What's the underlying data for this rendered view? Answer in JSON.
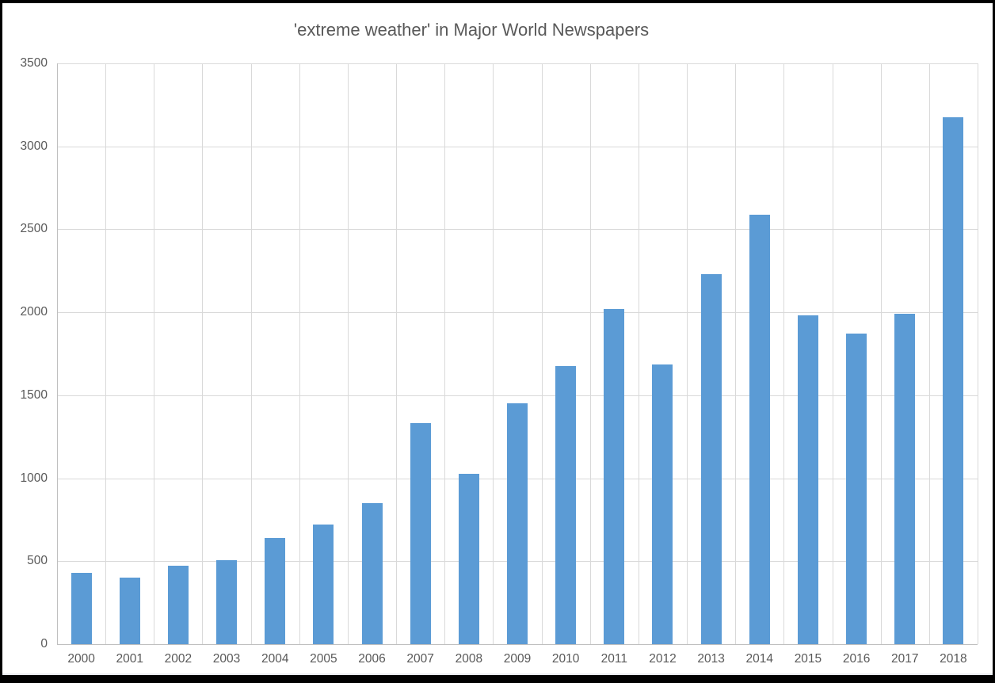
{
  "window": {
    "frame_color": "#000000",
    "background_color": "#FFFFFF"
  },
  "chart_data": {
    "type": "bar",
    "title": "'extreme weather' in Major World Newspapers",
    "categories": [
      "2000",
      "2001",
      "2002",
      "2003",
      "2004",
      "2005",
      "2006",
      "2007",
      "2008",
      "2009",
      "2010",
      "2011",
      "2012",
      "2013",
      "2014",
      "2015",
      "2016",
      "2017",
      "2018"
    ],
    "values": [
      430,
      400,
      475,
      505,
      640,
      720,
      850,
      1330,
      1025,
      1450,
      1675,
      2020,
      1685,
      2230,
      2590,
      1980,
      1870,
      1990,
      3175
    ],
    "xlabel": "",
    "ylabel": "",
    "ylim": [
      0,
      3500
    ],
    "yticks": [
      0,
      500,
      1000,
      1500,
      2000,
      2500,
      3000,
      3500
    ],
    "grid": {
      "horizontal": true,
      "vertical": true
    },
    "legend": "none",
    "colors": {
      "bar": "#5B9BD5",
      "gridline": "#D9D9D9",
      "axis_line": "#BFBFBF",
      "text": "#595959",
      "frame": "#000000",
      "background": "#FFFFFF"
    }
  }
}
